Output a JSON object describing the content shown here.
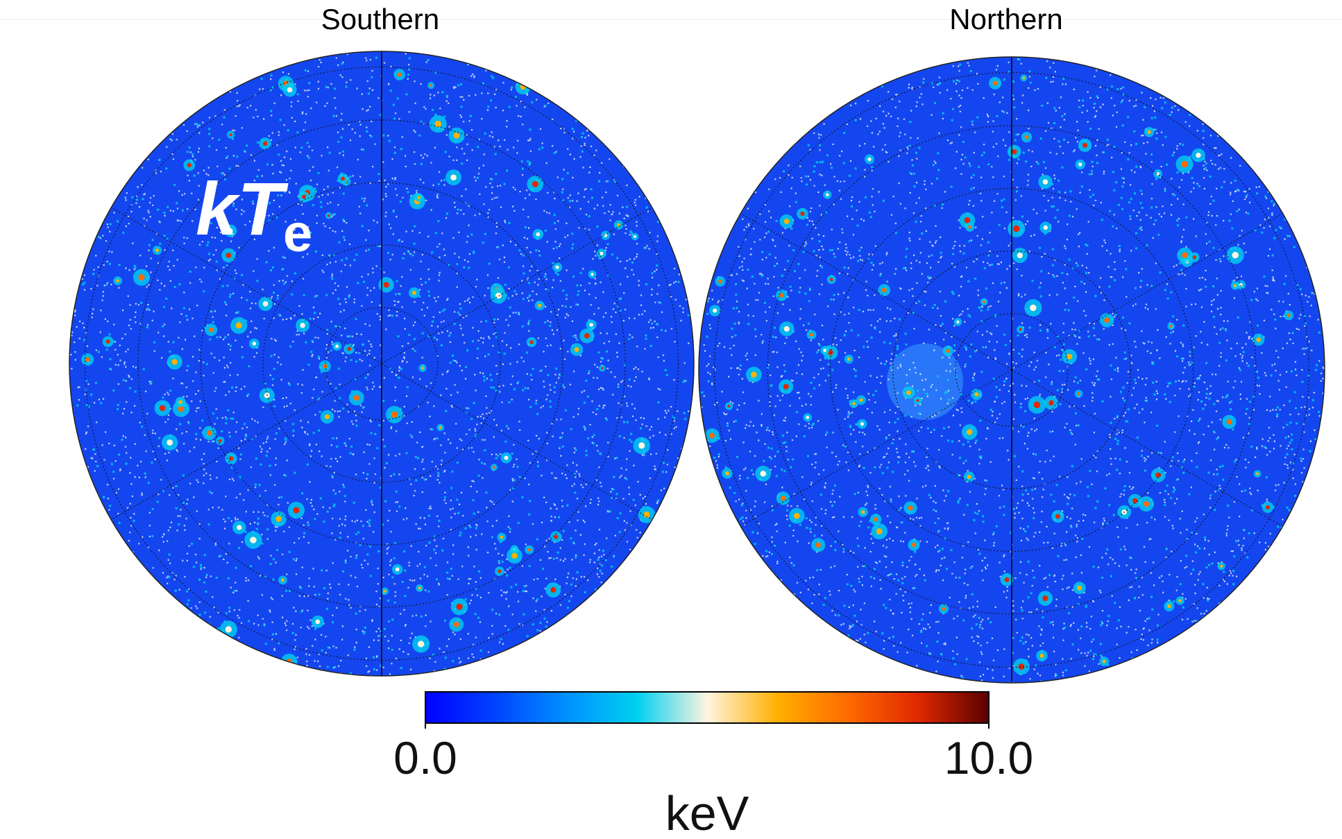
{
  "panels": [
    {
      "title": "Southern"
    },
    {
      "title": "Northern"
    }
  ],
  "annotation": {
    "symbol": "kT",
    "subscript": "e"
  },
  "colorbar": {
    "lim": [
      0,
      10
    ],
    "ticks": [
      {
        "value": 0,
        "label": "0.0"
      },
      {
        "value": 10,
        "label": "10.0"
      }
    ],
    "label": "keV",
    "colors": [
      "#0000ff",
      "#0044ff",
      "#0090ff",
      "#00d0f0",
      "#fff4e0",
      "#ffb000",
      "#ff6a00",
      "#e02800",
      "#5a0000"
    ]
  }
}
